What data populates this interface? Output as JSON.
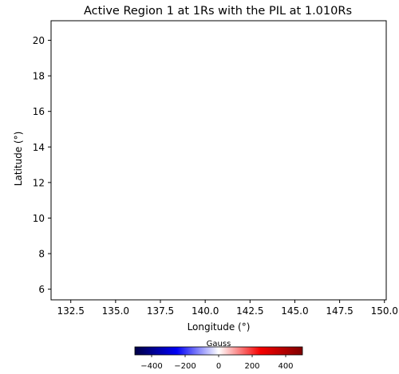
{
  "chart_data": {
    "type": "heatmap",
    "title": "Active Region 1 at 1Rs with the PIL at 1.010Rs",
    "xlabel": "Longitude (°)",
    "ylabel": "Latitude (°)",
    "xlim": [
      131.4,
      150.1
    ],
    "ylim": [
      5.4,
      21.1
    ],
    "x_ticks": [
      132.5,
      135.0,
      137.5,
      140.0,
      142.5,
      145.0,
      147.5,
      150.0
    ],
    "x_tick_labels": [
      "132.5",
      "135.0",
      "137.5",
      "140.0",
      "142.5",
      "145.0",
      "147.5",
      "150.0"
    ],
    "y_ticks": [
      6,
      8,
      10,
      12,
      14,
      16,
      18,
      20
    ],
    "y_tick_labels": [
      "6",
      "8",
      "10",
      "12",
      "14",
      "16",
      "18",
      "20"
    ],
    "grid": false,
    "data_points": [],
    "colorbar": {
      "label": "Gauss",
      "colormap": "seismic",
      "range": [
        -500,
        500
      ],
      "ticks": [
        -400,
        -200,
        0,
        200,
        400
      ],
      "tick_labels": [
        "−400",
        "−200",
        "0",
        "200",
        "400"
      ],
      "colors": [
        "#000045",
        "#0000f5",
        "#ffffff",
        "#f50000",
        "#7f0000"
      ],
      "orientation": "horizontal",
      "position": "bottom"
    }
  }
}
